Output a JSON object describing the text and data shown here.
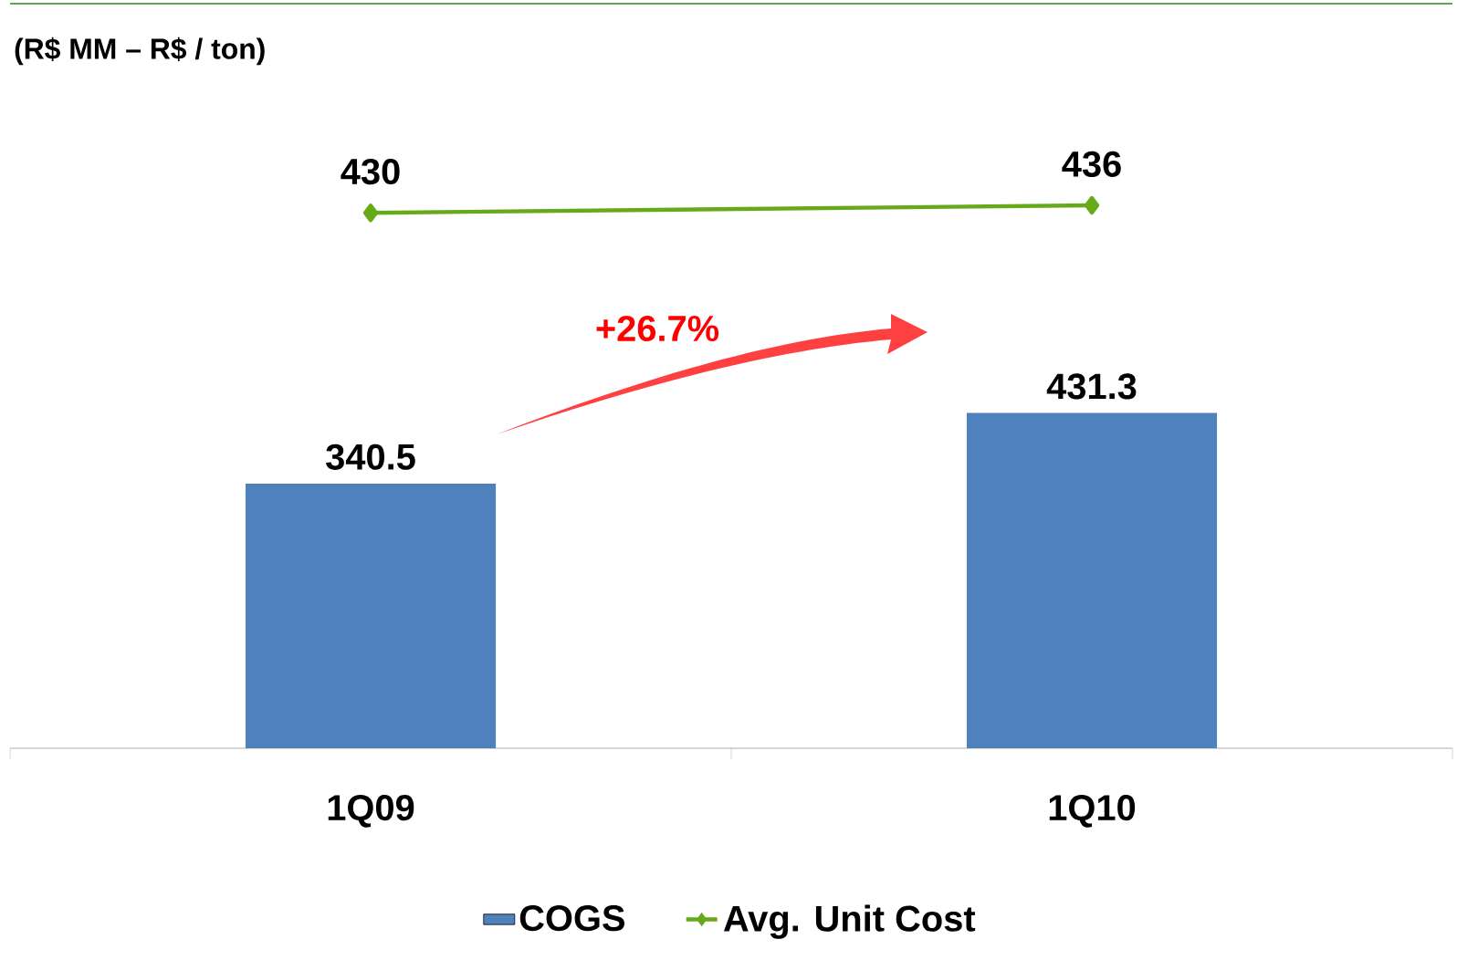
{
  "chart_data": {
    "type": "bar",
    "title": "(R$ MM – R$ / ton)",
    "categories": [
      "1Q09",
      "1Q10"
    ],
    "series": [
      {
        "name": "COGS",
        "color": "#4f81bd",
        "values": [
          340.5,
          431.3
        ]
      },
      {
        "name": "Avg. Unit Cost",
        "type": "line",
        "axis": "y2",
        "color": "#66aa1a",
        "marker": "diamond",
        "values": [
          430,
          436
        ]
      }
    ],
    "ylim": [
      0,
      958
    ],
    "y2lim": [
      0,
      598
    ],
    "data_labels": true,
    "legend": "bottom",
    "annotations": [
      "+26.7%"
    ]
  }
}
